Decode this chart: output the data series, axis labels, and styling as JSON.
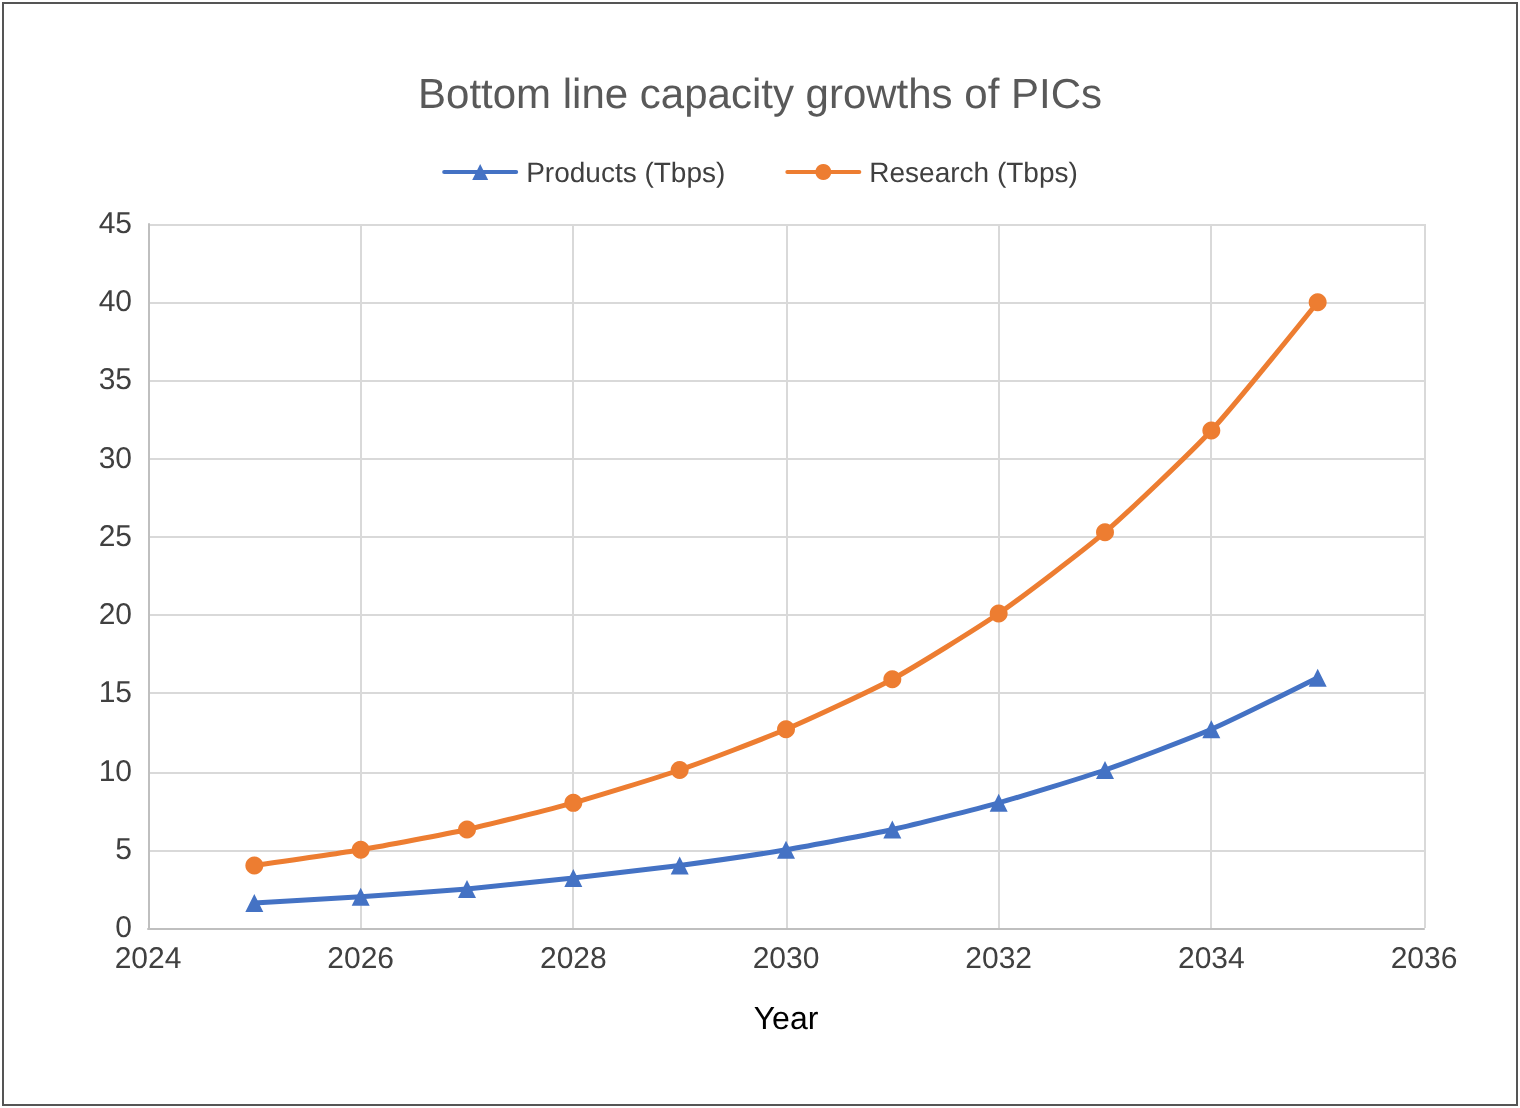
{
  "chart_data": {
    "type": "line",
    "title": "Bottom line capacity growths of PICs",
    "xlabel": "Year",
    "x": [
      2025,
      2026,
      2027,
      2028,
      2029,
      2030,
      2031,
      2032,
      2033,
      2034,
      2035
    ],
    "series": [
      {
        "name": "Products (Tbps)",
        "color": "#4472c4",
        "marker": "triangle",
        "values": [
          1.6,
          2.0,
          2.5,
          3.2,
          4.0,
          5.0,
          6.3,
          8.0,
          10.1,
          12.7,
          16.0
        ]
      },
      {
        "name": "Research (Tbps)",
        "color": "#ed7d31",
        "marker": "circle",
        "values": [
          4.0,
          5.0,
          6.3,
          8.0,
          10.1,
          12.7,
          15.9,
          20.1,
          25.3,
          31.8,
          40.0
        ]
      }
    ],
    "xlim": [
      2024,
      2036
    ],
    "xticks": [
      2024,
      2026,
      2028,
      2030,
      2032,
      2034,
      2036
    ],
    "ylim": [
      0,
      45
    ],
    "yticks": [
      0,
      5,
      10,
      15,
      20,
      25,
      30,
      35,
      40,
      45
    ],
    "grid": true,
    "legend": "top",
    "line_style": "solid"
  }
}
